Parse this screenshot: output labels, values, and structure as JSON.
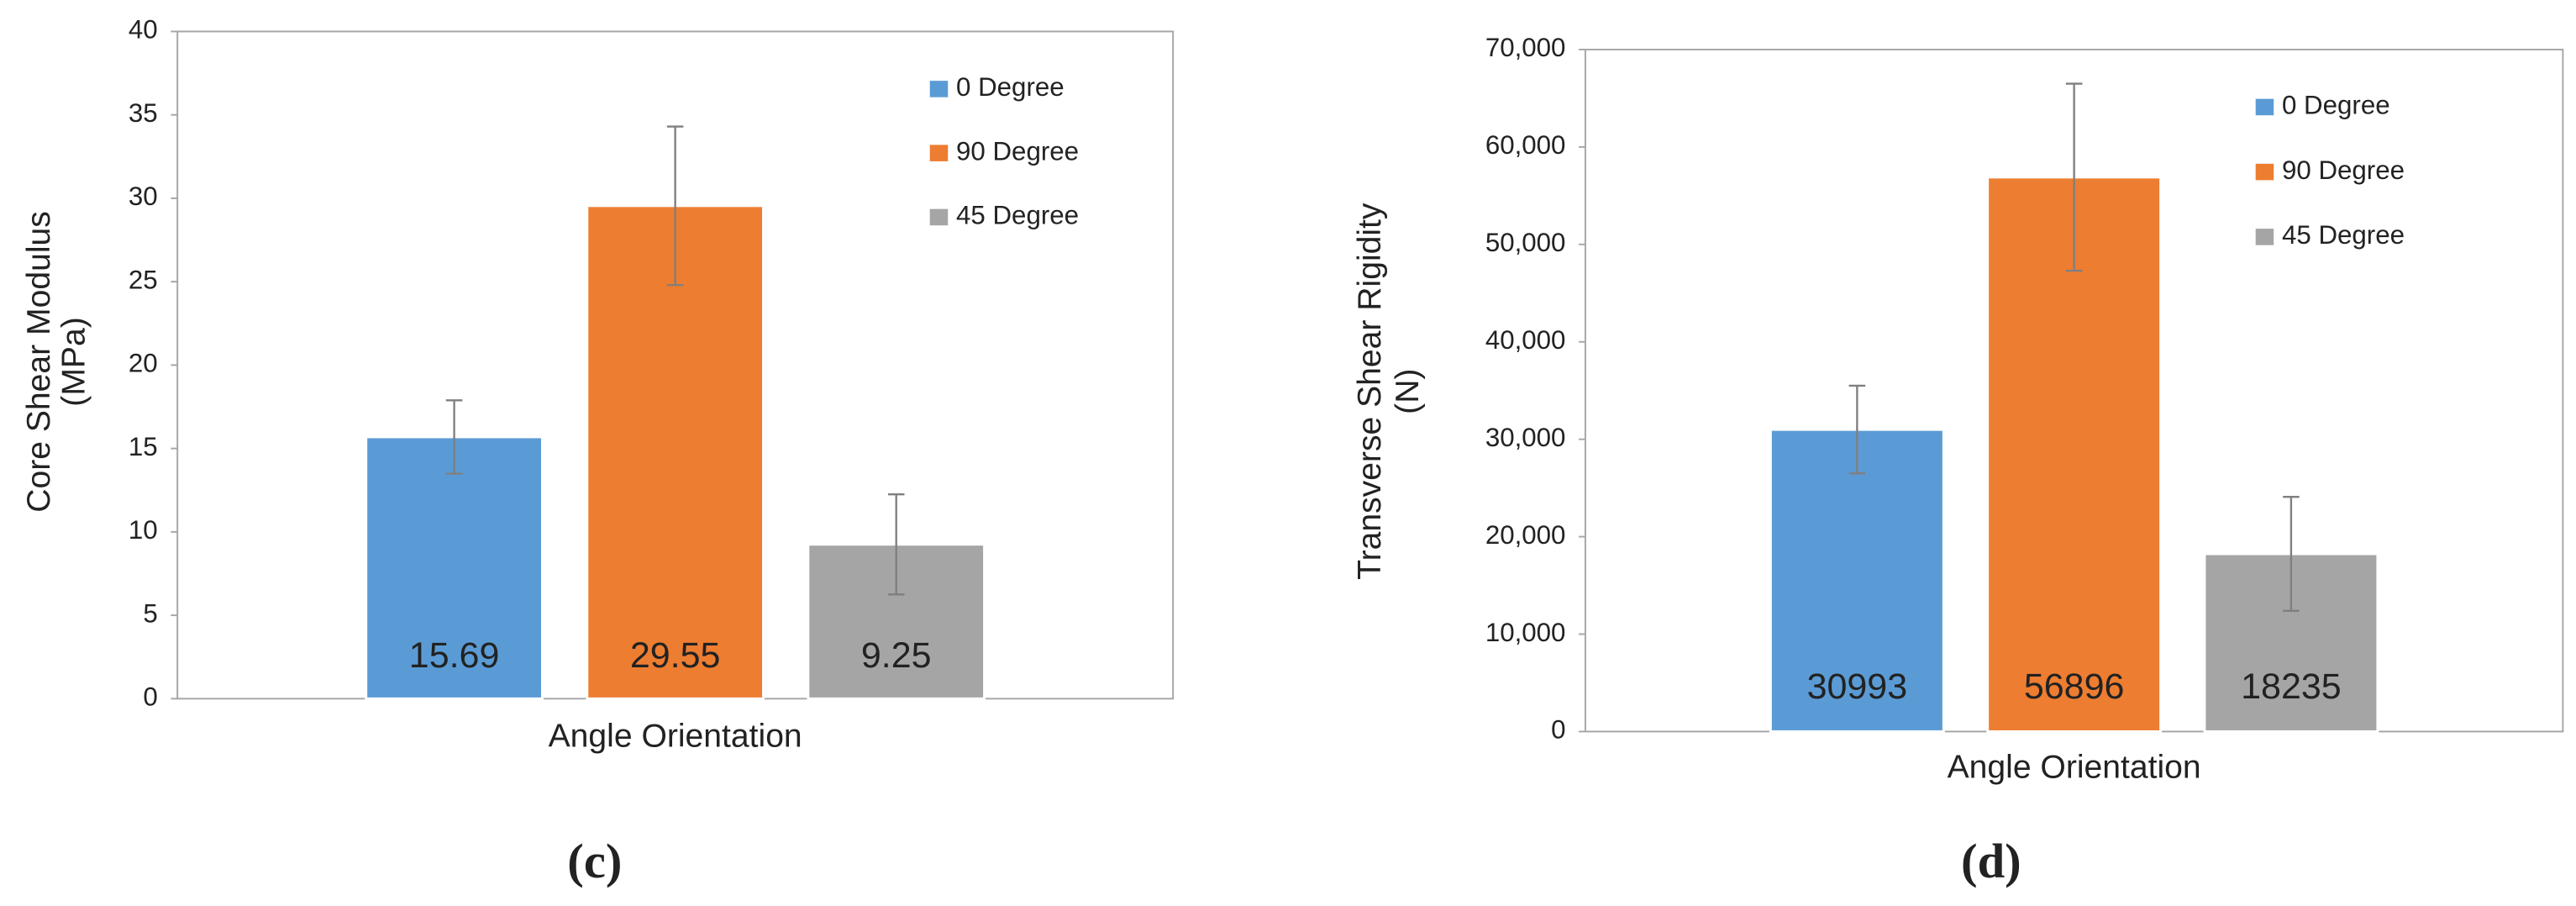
{
  "chart_data": [
    {
      "type": "bar",
      "panel_label": "(c)",
      "x_label": "Angle Orientation",
      "y_label": [
        "Core Shear Modulus",
        "(MPa)"
      ],
      "categories": [
        null
      ],
      "series": [
        {
          "name": "0 Degree",
          "color": "#5b9bd5",
          "values": [
            15.69
          ],
          "errors": [
            2.2
          ]
        },
        {
          "name": "90 Degree",
          "color": "#ed7d31",
          "values": [
            29.55
          ],
          "errors": [
            4.75
          ]
        },
        {
          "name": "45 Degree",
          "color": "#a5a5a5",
          "values": [
            9.25
          ],
          "errors": [
            3.0
          ]
        }
      ],
      "ylim": [
        0,
        40
      ],
      "yticks": [
        0,
        5,
        10,
        15,
        20,
        25,
        30,
        35,
        40
      ],
      "legend": "upper right"
    },
    {
      "type": "bar",
      "panel_label": "(d)",
      "x_label": "Angle Orientation",
      "y_label": [
        "Transverse Shear Rigidity",
        "(N)"
      ],
      "categories": [
        null
      ],
      "series": [
        {
          "name": "0 Degree",
          "color": "#5b9bd5",
          "values": [
            30993
          ],
          "errors": [
            4500
          ]
        },
        {
          "name": "90 Degree",
          "color": "#ed7d31",
          "values": [
            56896
          ],
          "errors": [
            9600
          ]
        },
        {
          "name": "45 Degree",
          "color": "#a5a5a5",
          "values": [
            18235
          ],
          "errors": [
            5850
          ]
        }
      ],
      "ylim": [
        0,
        70000
      ],
      "yticks": [
        0,
        {
          "value": 10000,
          "label": "10,000"
        },
        {
          "value": 20000,
          "label": "20,000"
        },
        {
          "value": 30000,
          "label": "30,000"
        },
        {
          "value": 40000,
          "label": "40,000"
        },
        {
          "value": 50000,
          "label": "50,000"
        },
        {
          "value": 60000,
          "label": "60,000"
        },
        {
          "value": 70000,
          "label": "70,000"
        }
      ],
      "legend": "upper right"
    }
  ]
}
